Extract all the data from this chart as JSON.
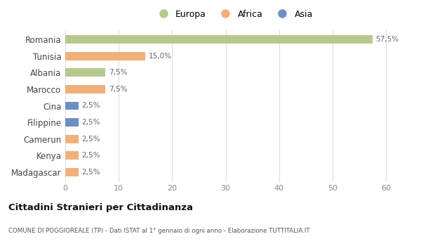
{
  "categories": [
    "Romania",
    "Tunisia",
    "Albania",
    "Marocco",
    "Cina",
    "Filippine",
    "Camerun",
    "Kenya",
    "Madagascar"
  ],
  "values": [
    57.5,
    15.0,
    7.5,
    7.5,
    2.5,
    2.5,
    2.5,
    2.5,
    2.5
  ],
  "colors": [
    "#b5c98e",
    "#f0b07a",
    "#b5c98e",
    "#f0b07a",
    "#6b8fc2",
    "#6b8fc2",
    "#f0b07a",
    "#f0b07a",
    "#f0b07a"
  ],
  "labels": [
    "57,5%",
    "15,0%",
    "7,5%",
    "7,5%",
    "2,5%",
    "2,5%",
    "2,5%",
    "2,5%",
    "2,5%"
  ],
  "xlim": [
    0,
    63
  ],
  "xticks": [
    0,
    10,
    20,
    30,
    40,
    50,
    60
  ],
  "legend_labels": [
    "Europa",
    "Africa",
    "Asia"
  ],
  "legend_colors": [
    "#b5c98e",
    "#f0b07a",
    "#6b8fc2"
  ],
  "title": "Cittadini Stranieri per Cittadinanza",
  "subtitle": "COMUNE DI POGGIOREALE (TP) - Dati ISTAT al 1° gennaio di ogni anno - Elaborazione TUTTITALIA.IT",
  "background_color": "#ffffff",
  "grid_color": "#dddddd",
  "bar_height": 0.5
}
